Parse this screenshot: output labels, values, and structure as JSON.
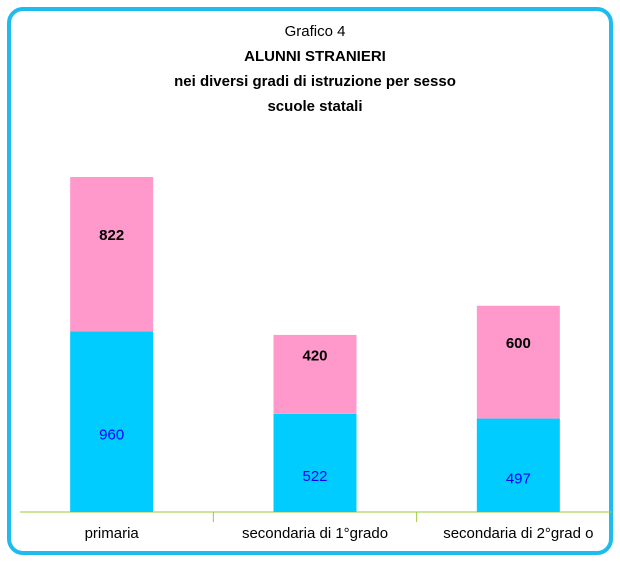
{
  "chart_data": {
    "type": "stacked_bar",
    "title": "Grafico 4",
    "subtitle": [
      "ALUNNI STRANIERI",
      "nei diversi gradi di istruzione per sesso",
      "scuole statali"
    ],
    "categories": [
      "primaria",
      "secondaria di 1°grado",
      "secondaria di 2°grad o"
    ],
    "series": [
      {
        "color": "#00ccff",
        "label_color": "#0000ff",
        "values": [
          960,
          522,
          497
        ]
      },
      {
        "color": "#ff99cc",
        "label_color": "#000000",
        "values": [
          822,
          420,
          600
        ]
      }
    ]
  }
}
